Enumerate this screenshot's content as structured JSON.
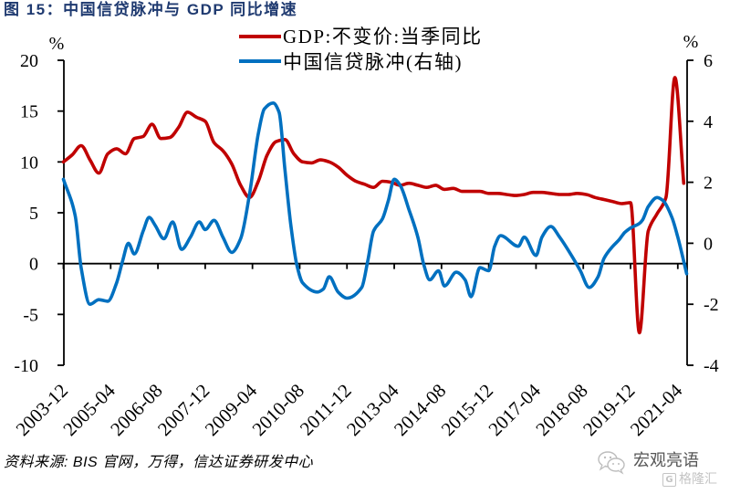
{
  "colors": {
    "title": "#1F3A70",
    "axis": "#000000",
    "watermark_account": "#555555",
    "watermark_brand": "#C4C4C4"
  },
  "source": "资料来源: BIS 官网，万得，信达证券研发中心",
  "watermark": {
    "account": "宏观亮语",
    "brand": "格隆汇",
    "icons": [
      "wechat-icon",
      "gelonghui-logo-icon"
    ]
  },
  "chart_data": {
    "type": "line",
    "title": "图 15：中国信贷脉冲与 GDP 同比增速",
    "xlabel": "",
    "x_type": "month",
    "xlim": [
      "2003-12",
      "2021-07"
    ],
    "x_ticks": [
      "2003-12",
      "2005-04",
      "2006-08",
      "2007-12",
      "2009-04",
      "2010-08",
      "2011-12",
      "2013-04",
      "2014-08",
      "2015-12",
      "2017-04",
      "2018-08",
      "2019-12",
      "2021-04"
    ],
    "y_left": {
      "label": "%",
      "ylim": [
        -10,
        20
      ],
      "ticks": [
        20,
        15,
        10,
        5,
        0,
        -5,
        -10
      ]
    },
    "y_right": {
      "label": "%",
      "ylim": [
        -4,
        6
      ],
      "ticks": [
        6,
        4,
        2,
        0,
        -2,
        -4
      ]
    },
    "grid": false,
    "legend": {
      "placement": "top-center"
    },
    "series": [
      {
        "name": "GDP:不变价:当季同比",
        "axis": "left",
        "color": "#C00000",
        "x": [
          "2003-12",
          "2004-03",
          "2004-06",
          "2004-09",
          "2004-12",
          "2005-03",
          "2005-06",
          "2005-09",
          "2005-12",
          "2006-03",
          "2006-06",
          "2006-09",
          "2006-12",
          "2007-03",
          "2007-06",
          "2007-09",
          "2007-12",
          "2008-03",
          "2008-06",
          "2008-09",
          "2008-12",
          "2009-03",
          "2009-06",
          "2009-09",
          "2009-12",
          "2010-03",
          "2010-06",
          "2010-09",
          "2010-12",
          "2011-03",
          "2011-06",
          "2011-09",
          "2011-12",
          "2012-03",
          "2012-06",
          "2012-09",
          "2012-12",
          "2013-03",
          "2013-06",
          "2013-09",
          "2013-12",
          "2014-03",
          "2014-06",
          "2014-09",
          "2014-12",
          "2015-03",
          "2015-06",
          "2015-09",
          "2015-12",
          "2016-03",
          "2016-06",
          "2016-09",
          "2016-12",
          "2017-03",
          "2017-06",
          "2017-09",
          "2017-12",
          "2018-03",
          "2018-06",
          "2018-09",
          "2018-12",
          "2019-03",
          "2019-06",
          "2019-09",
          "2019-12",
          "2020-03",
          "2020-06",
          "2020-09",
          "2020-12",
          "2021-03",
          "2021-06"
        ],
        "values": [
          10.0,
          10.7,
          11.6,
          10.2,
          8.9,
          10.8,
          11.3,
          10.8,
          12.3,
          12.5,
          13.7,
          12.3,
          12.4,
          13.4,
          14.9,
          14.4,
          14.0,
          11.9,
          11.1,
          9.8,
          7.7,
          6.5,
          8.1,
          10.7,
          12.0,
          12.2,
          10.8,
          10.0,
          9.9,
          10.2,
          10.0,
          9.5,
          8.7,
          8.1,
          7.8,
          7.5,
          8.1,
          8.0,
          7.7,
          7.9,
          7.7,
          7.5,
          7.7,
          7.3,
          7.4,
          7.1,
          7.1,
          7.1,
          6.9,
          6.9,
          6.8,
          6.7,
          6.8,
          7.0,
          7.0,
          6.9,
          6.8,
          6.8,
          6.9,
          6.8,
          6.5,
          6.3,
          6.1,
          5.9,
          6.0,
          -6.8,
          3.2,
          4.9,
          6.5,
          18.3,
          7.9
        ]
      },
      {
        "name": "中国信贷脉冲(右轴)",
        "axis": "right",
        "color": "#0070C0",
        "x": [
          "2003-12",
          "2004-04",
          "2004-06",
          "2004-09",
          "2004-12",
          "2005-03",
          "2005-06",
          "2005-08",
          "2005-10",
          "2005-12",
          "2006-03",
          "2006-05",
          "2006-07",
          "2006-10",
          "2007-01",
          "2007-04",
          "2007-07",
          "2007-10",
          "2007-12",
          "2008-03",
          "2008-06",
          "2008-09",
          "2008-12",
          "2009-03",
          "2009-06",
          "2009-08",
          "2009-11",
          "2010-01",
          "2010-03",
          "2010-05",
          "2010-07",
          "2010-09",
          "2011-02",
          "2011-04",
          "2011-06",
          "2011-09",
          "2011-12",
          "2012-05",
          "2012-07",
          "2012-09",
          "2012-12",
          "2013-02",
          "2013-04",
          "2013-06",
          "2013-09",
          "2013-12",
          "2014-02",
          "2014-04",
          "2014-07",
          "2014-09",
          "2015-01",
          "2015-04",
          "2015-06",
          "2015-09",
          "2015-12",
          "2016-02",
          "2016-04",
          "2016-10",
          "2016-12",
          "2017-04",
          "2017-06",
          "2017-09",
          "2017-12",
          "2018-04",
          "2018-07",
          "2018-10",
          "2019-01",
          "2019-03",
          "2019-06",
          "2019-08",
          "2019-10",
          "2019-12",
          "2020-03",
          "2020-04",
          "2020-06",
          "2020-09",
          "2020-11",
          "2021-02",
          "2021-04",
          "2021-07"
        ],
        "values": [
          2.1,
          0.9,
          -0.8,
          -2.0,
          -1.85,
          -1.9,
          -1.3,
          -0.6,
          0.0,
          -0.35,
          0.4,
          0.85,
          0.6,
          0.15,
          0.7,
          -0.2,
          0.2,
          0.7,
          0.45,
          0.75,
          0.2,
          -0.3,
          0.15,
          1.6,
          3.6,
          4.4,
          4.6,
          4.3,
          2.4,
          0.6,
          -0.7,
          -1.3,
          -1.6,
          -1.5,
          -1.1,
          -1.6,
          -1.8,
          -1.45,
          -0.6,
          0.4,
          0.8,
          1.4,
          2.1,
          1.9,
          1.1,
          0.2,
          -0.7,
          -1.2,
          -0.9,
          -1.4,
          -0.95,
          -1.2,
          -1.75,
          -0.8,
          -0.9,
          -0.1,
          0.25,
          -0.1,
          0.2,
          -0.4,
          0.2,
          0.55,
          0.2,
          -0.4,
          -0.9,
          -1.45,
          -1.1,
          -0.5,
          -0.1,
          0.1,
          0.35,
          0.5,
          0.65,
          0.75,
          1.2,
          1.5,
          1.4,
          0.85,
          0.2,
          -1.0
        ]
      }
    ]
  }
}
